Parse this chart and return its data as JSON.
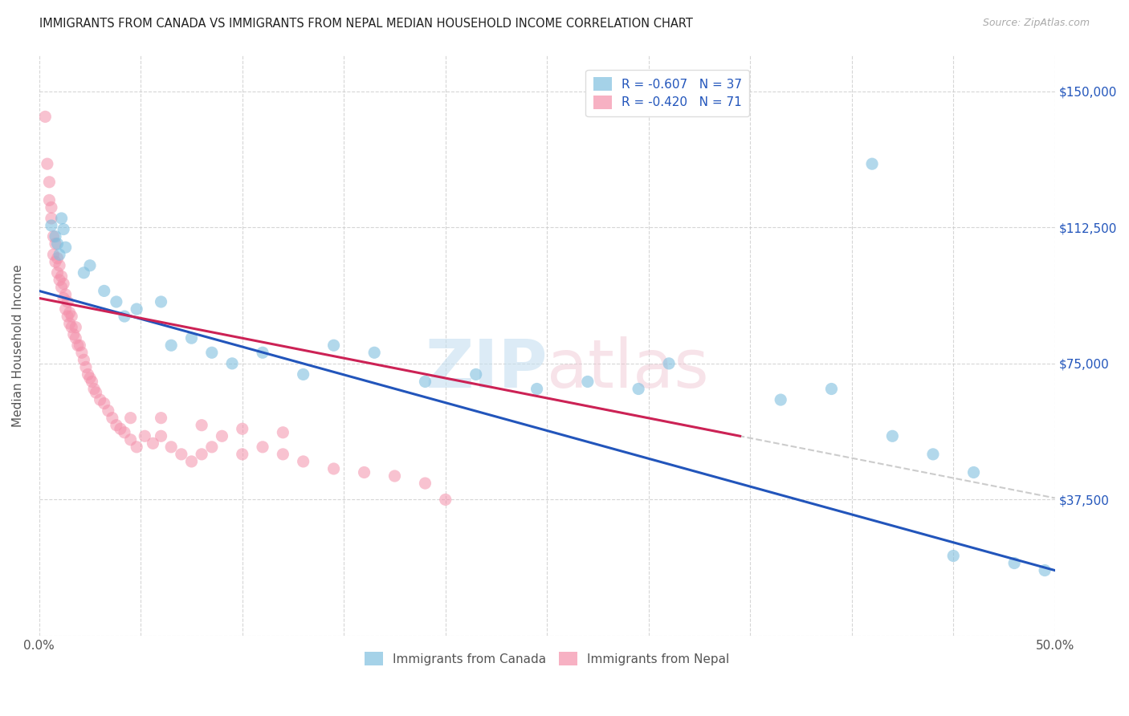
{
  "title": "IMMIGRANTS FROM CANADA VS IMMIGRANTS FROM NEPAL MEDIAN HOUSEHOLD INCOME CORRELATION CHART",
  "source": "Source: ZipAtlas.com",
  "ylabel": "Median Household Income",
  "x_min": 0.0,
  "x_max": 0.5,
  "y_min": 0,
  "y_max": 160000,
  "y_ticks": [
    0,
    37500,
    75000,
    112500,
    150000
  ],
  "canada_color": "#7fbfdf",
  "nepal_color": "#f490aa",
  "trendline_canada_color": "#2255bb",
  "trendline_nepal_color": "#cc2255",
  "trendline_extended_color": "#cccccc",
  "background_color": "#ffffff",
  "grid_color": "#cccccc",
  "title_color": "#222222",
  "right_tick_color": "#2255bb",
  "canada_x": [
    0.006,
    0.008,
    0.009,
    0.01,
    0.011,
    0.012,
    0.013,
    0.022,
    0.025,
    0.032,
    0.038,
    0.042,
    0.048,
    0.06,
    0.065,
    0.075,
    0.085,
    0.095,
    0.11,
    0.13,
    0.145,
    0.165,
    0.19,
    0.215,
    0.245,
    0.27,
    0.295,
    0.31,
    0.365,
    0.39,
    0.42,
    0.44,
    0.46,
    0.41,
    0.45,
    0.48,
    0.495
  ],
  "canada_y": [
    113000,
    110000,
    108000,
    105000,
    115000,
    112000,
    107000,
    100000,
    102000,
    95000,
    92000,
    88000,
    90000,
    92000,
    80000,
    82000,
    78000,
    75000,
    78000,
    72000,
    80000,
    78000,
    70000,
    72000,
    68000,
    70000,
    68000,
    75000,
    65000,
    68000,
    55000,
    50000,
    45000,
    130000,
    22000,
    20000,
    18000
  ],
  "nepal_x": [
    0.003,
    0.004,
    0.005,
    0.005,
    0.006,
    0.006,
    0.007,
    0.007,
    0.008,
    0.008,
    0.009,
    0.009,
    0.01,
    0.01,
    0.011,
    0.011,
    0.012,
    0.012,
    0.013,
    0.013,
    0.014,
    0.014,
    0.015,
    0.015,
    0.016,
    0.016,
    0.017,
    0.018,
    0.018,
    0.019,
    0.02,
    0.021,
    0.022,
    0.023,
    0.024,
    0.025,
    0.026,
    0.027,
    0.028,
    0.03,
    0.032,
    0.034,
    0.036,
    0.038,
    0.04,
    0.042,
    0.045,
    0.048,
    0.052,
    0.056,
    0.06,
    0.065,
    0.07,
    0.075,
    0.08,
    0.085,
    0.09,
    0.1,
    0.11,
    0.12,
    0.13,
    0.145,
    0.16,
    0.175,
    0.19,
    0.045,
    0.06,
    0.08,
    0.1,
    0.12,
    0.2
  ],
  "nepal_y": [
    143000,
    130000,
    120000,
    125000,
    115000,
    118000,
    110000,
    105000,
    103000,
    108000,
    100000,
    104000,
    98000,
    102000,
    96000,
    99000,
    93000,
    97000,
    90000,
    94000,
    88000,
    92000,
    86000,
    89000,
    85000,
    88000,
    83000,
    82000,
    85000,
    80000,
    80000,
    78000,
    76000,
    74000,
    72000,
    71000,
    70000,
    68000,
    67000,
    65000,
    64000,
    62000,
    60000,
    58000,
    57000,
    56000,
    54000,
    52000,
    55000,
    53000,
    55000,
    52000,
    50000,
    48000,
    50000,
    52000,
    55000,
    50000,
    52000,
    50000,
    48000,
    46000,
    45000,
    44000,
    42000,
    60000,
    60000,
    58000,
    57000,
    56000,
    37500
  ],
  "point_size": 120
}
